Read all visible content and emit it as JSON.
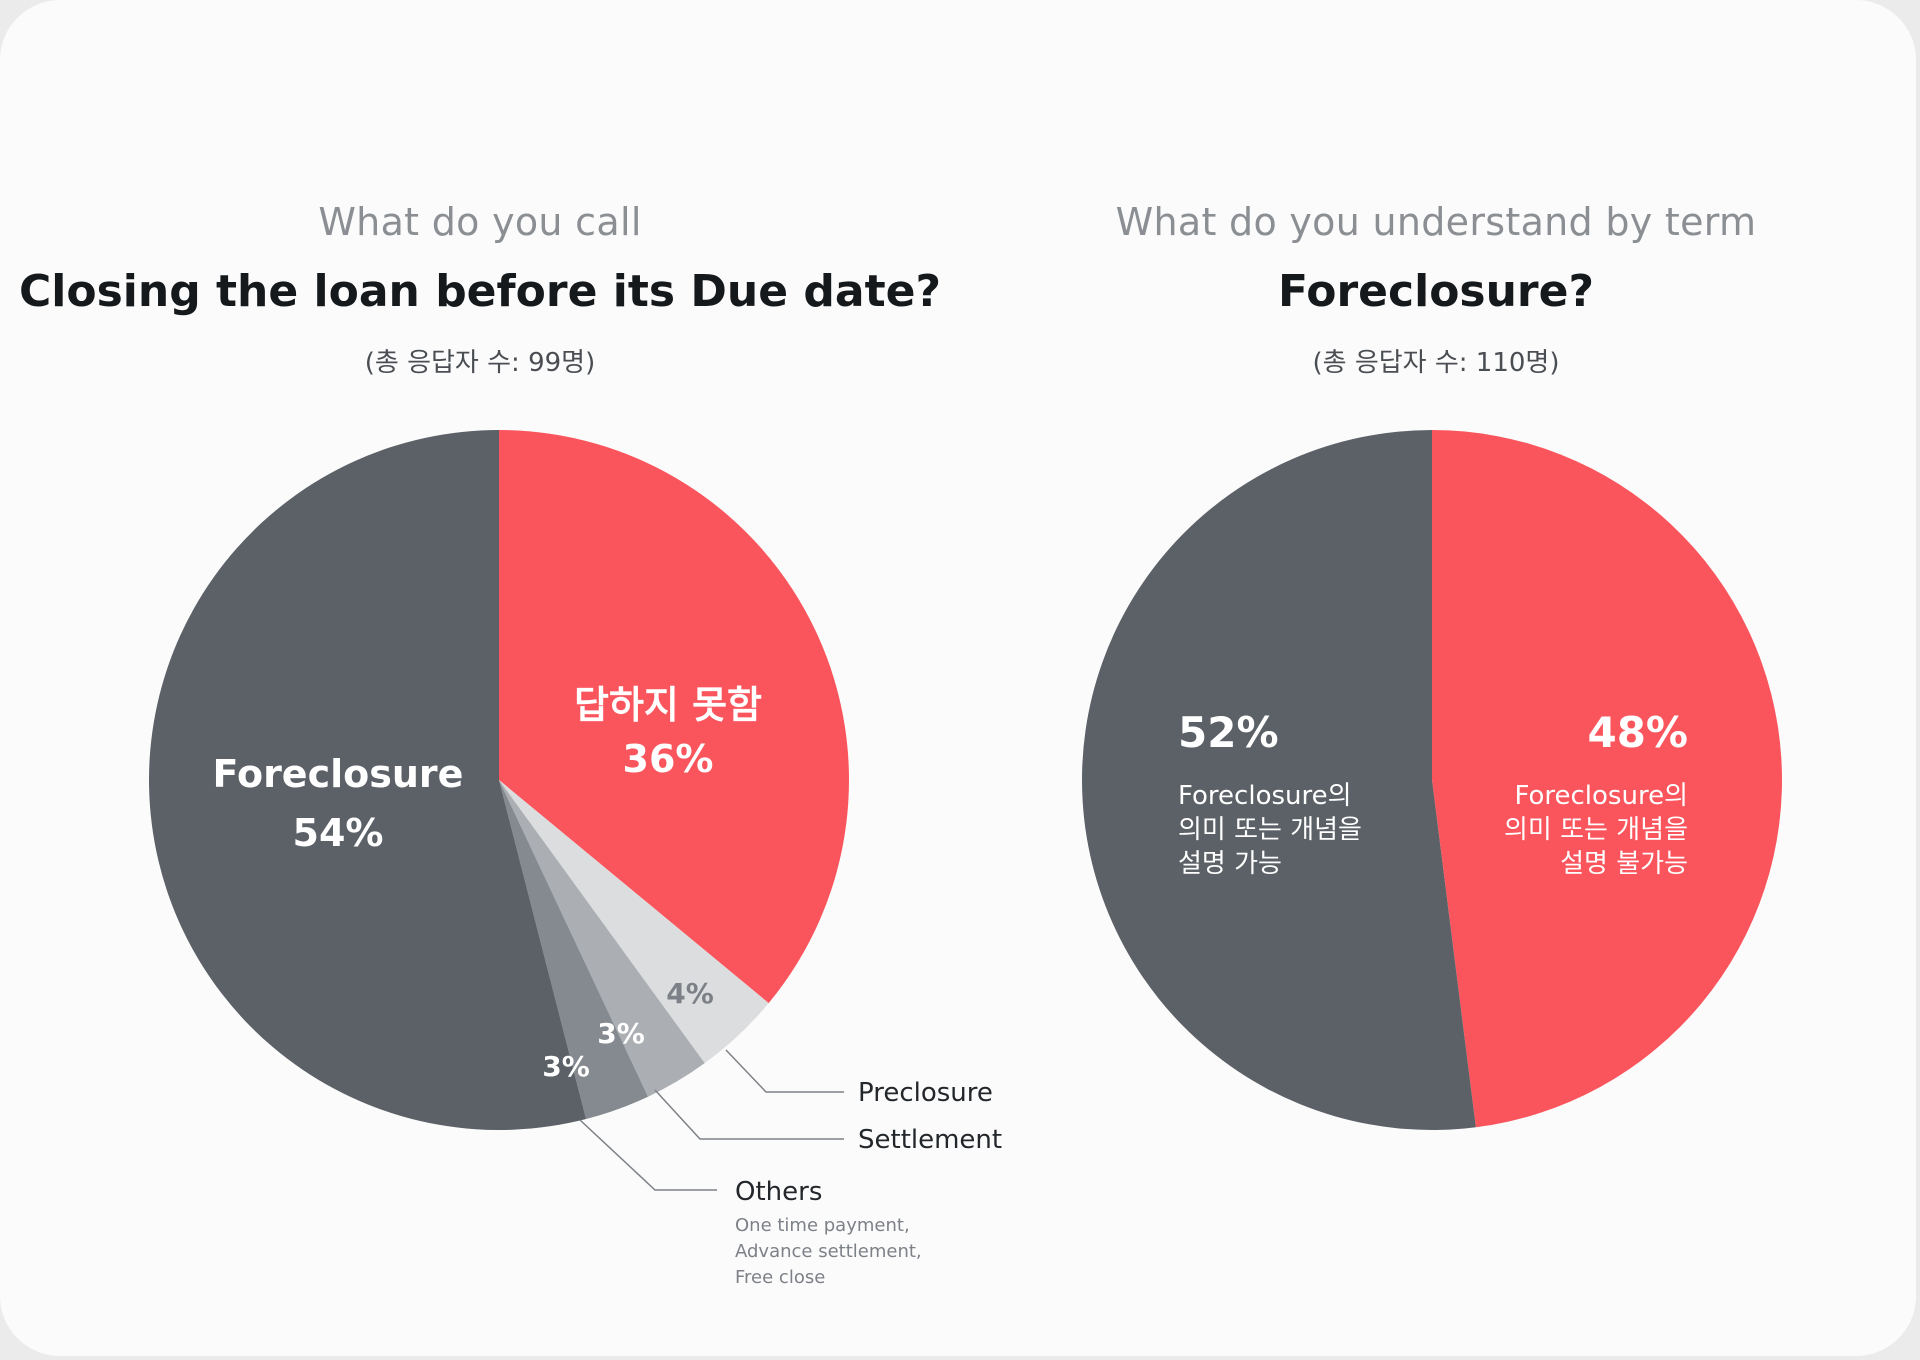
{
  "chart_data": [
    {
      "type": "pie",
      "subtitle": "What do you call",
      "title": "Closing the loan before its Due date?",
      "respondents": "(총 응답자 수: 99명)",
      "series": [
        {
          "name": "",
          "slices": [
            {
              "label": "답하지 못함",
              "value": 36,
              "display": "36%",
              "color": "#fa555c"
            },
            {
              "label": "Preclosure",
              "value": 4,
              "display": "4%",
              "color": "#dcdddf"
            },
            {
              "label": "Settlement",
              "value": 3,
              "display": "3%",
              "color": "#abaeb2"
            },
            {
              "label": "Others",
              "value": 3,
              "display": "3%",
              "color": "#858a90",
              "note": [
                "One time payment,",
                "Advance settlement,",
                "Free close"
              ]
            },
            {
              "label": "Foreclosure",
              "value": 54,
              "display": "54%",
              "color": "#5b6167"
            }
          ]
        }
      ],
      "legend": "none"
    },
    {
      "type": "pie",
      "subtitle": "What do you understand by term",
      "title": "Foreclosure?",
      "respondents": "(총 응답자 수: 110명)",
      "series": [
        {
          "name": "",
          "slices": [
            {
              "label": "Foreclosure의 의미 또는 개념을 설명 불가능",
              "value": 48,
              "display": "48%",
              "color": "#fa555c",
              "lines": [
                "Foreclosure의",
                "의미 또는 개념을",
                "설명 불가능"
              ]
            },
            {
              "label": "Foreclosure의 의미 또는 개념을 설명 가능",
              "value": 52,
              "display": "52%",
              "color": "#5b6167",
              "lines": [
                "Foreclosure의",
                "의미 또는 개념을",
                "설명 가능"
              ]
            }
          ]
        }
      ],
      "legend": "none"
    }
  ]
}
